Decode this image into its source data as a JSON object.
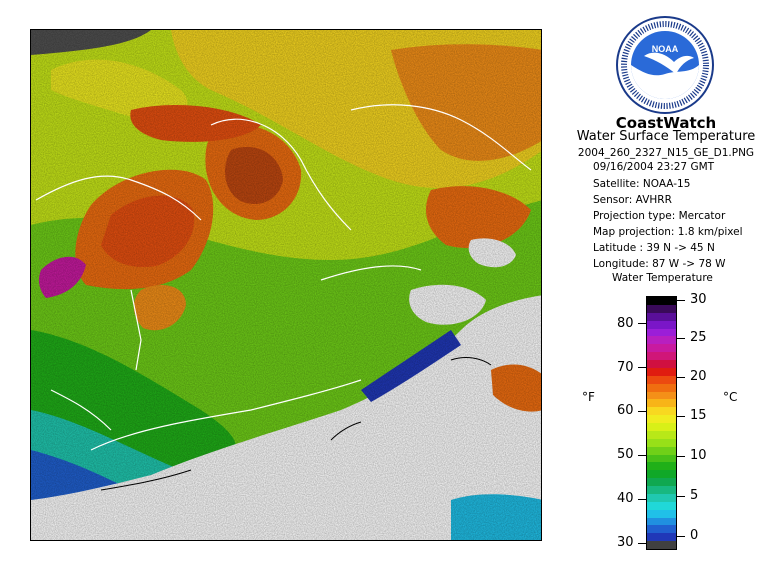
{
  "header": {
    "logo_text": "NOAA",
    "title": "CoastWatch",
    "subtitle": "Water Surface Temperature",
    "filename": "2004_260_2327_N15_GE_D1.PNG"
  },
  "metadata": [
    "09/16/2004   23:27 GMT",
    "Satellite: NOAA-15",
    "Sensor: AVHRR",
    "Projection type:  Mercator",
    "Map projection: 1.8 km/pixel",
    "Latitude : 39 N -> 45 N",
    "Longitude: 87 W -> 78 W"
  ],
  "legend": {
    "title": "Water Temperature",
    "unit_left": "°F",
    "unit_right": "°C",
    "fahrenheit_ticks": [
      "80",
      "70",
      "60",
      "50",
      "40",
      "30"
    ],
    "celsius_ticks": [
      "30",
      "25",
      "20",
      "15",
      "10",
      "5",
      "0"
    ],
    "colors": [
      "#000000",
      "#3a0a5a",
      "#5a0f9a",
      "#7a16c8",
      "#9b1ed8",
      "#b81fc0",
      "#c81aa0",
      "#d01678",
      "#d01040",
      "#e01c10",
      "#ec4a10",
      "#f06e10",
      "#f49018",
      "#f8b418",
      "#f8d820",
      "#f0ec20",
      "#d8f018",
      "#b8e818",
      "#98e018",
      "#70d018",
      "#48c018",
      "#20b018",
      "#10a828",
      "#10a850",
      "#18b880",
      "#20c8b0",
      "#20d8d8",
      "#20c0e8",
      "#2090e0",
      "#2060d0",
      "#2038b8",
      "#404040"
    ]
  },
  "map": {
    "description_colors": {
      "hot": "#e85010",
      "warm": "#f8d820",
      "mild": "#98e018",
      "cool": "#20b018",
      "cold": "#2060d0",
      "cloud": "#ffffff",
      "land": "#505050"
    }
  }
}
